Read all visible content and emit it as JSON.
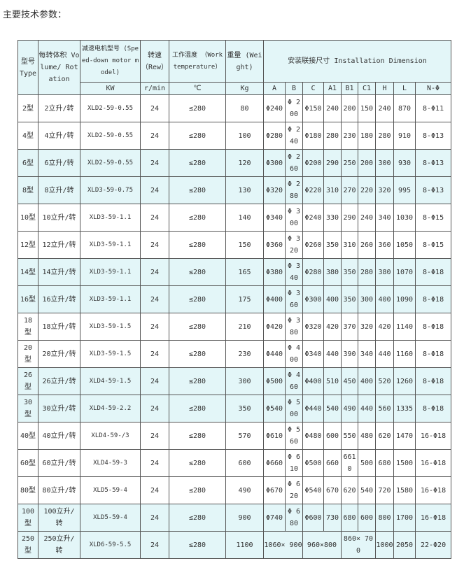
{
  "title": "主要技术参数：",
  "header": {
    "type": "型号 Type",
    "volume": "每转体积 Volume/ Rotation",
    "motor": "减速电机型号 (Speed-down motor model)",
    "speed": "转速 （Rew）",
    "temp": "工作温度 （Work temperature）",
    "weight": "重量 (Weight)",
    "install": "安装联接尺寸 Installation Dimension",
    "units": [
      "KW",
      "r/min",
      "℃",
      "Kg"
    ],
    "dims": [
      "A",
      "B",
      "C",
      "A1",
      "B1",
      "C1",
      "H",
      "L",
      "N-Φ"
    ]
  },
  "rows": [
    [
      "2型",
      "2立升/转",
      "XLD2-59-0.55",
      "24",
      "≤280",
      "80",
      "Φ240",
      "Φ 200",
      "Φ150",
      "240",
      "200",
      "150",
      "240",
      "870",
      "8-Φ11"
    ],
    [
      "4型",
      "4立升/转",
      "XLD2-59-0.55",
      "24",
      "≤280",
      "100",
      "Φ280",
      "Φ 240",
      "Φ180",
      "280",
      "230",
      "180",
      "280",
      "910",
      "8-Φ13"
    ],
    [
      "6型",
      "6立升/转",
      "XLD2-59-0.55",
      "24",
      "≤280",
      "120",
      "Φ300",
      "Φ 260",
      "Φ200",
      "290",
      "250",
      "200",
      "300",
      "930",
      "8-Φ13"
    ],
    [
      "8型",
      "8立升/转",
      "XLD3-59-0.75",
      "24",
      "≤280",
      "130",
      "Φ320",
      "Φ 280",
      "Φ220",
      "310",
      "270",
      "220",
      "320",
      "995",
      "8-Φ13"
    ],
    [
      "10型",
      "10立升/转",
      "XLD3-59-1.1",
      "24",
      "≤280",
      "140",
      "Φ340",
      "Φ 300",
      "Φ240",
      "330",
      "290",
      "240",
      "340",
      "1030",
      "8-Φ15"
    ],
    [
      "12型",
      "12立升/转",
      "XLD3-59-1.1",
      "24",
      "≤280",
      "150",
      "Φ360",
      "Φ 320",
      "Φ260",
      "350",
      "310",
      "260",
      "360",
      "1050",
      "8-Φ15"
    ],
    [
      "14型",
      "14立升/转",
      "XLD3-59-1.1",
      "24",
      "≤280",
      "165",
      "Φ380",
      "Φ 340",
      "Φ280",
      "380",
      "350",
      "280",
      "380",
      "1070",
      "8-Φ18"
    ],
    [
      "16型",
      "16立升/转",
      "XLD3-59-1.1",
      "24",
      "≤280",
      "175",
      "Φ400",
      "Φ 360",
      "Φ300",
      "400",
      "350",
      "300",
      "400",
      "1090",
      "8-Φ18"
    ],
    [
      "18 型",
      "18立升/转",
      "XLD3-59-1.5",
      "24",
      "≤280",
      "210",
      "Φ420",
      "Φ 380",
      "Φ320",
      "420",
      "370",
      "320",
      "420",
      "1140",
      "8-Φ18"
    ],
    [
      "20 型",
      "20立升/转",
      "XLD3-59-1.5",
      "24",
      "≤280",
      "230",
      "Φ440",
      "Φ 400",
      "Φ340",
      "440",
      "390",
      "340",
      "440",
      "1160",
      "8-Φ18"
    ],
    [
      "26 型",
      "26立升/转",
      "XLD4-59-1.5",
      "24",
      "≤280",
      "300",
      "Φ500",
      "Φ 460",
      "Φ400",
      "510",
      "450",
      "400",
      "520",
      "1260",
      "8-Φ18"
    ],
    [
      "30 型",
      "30立升/转",
      "XLD4-59-2.2",
      "24",
      "≤280",
      "350",
      "Φ540",
      "Φ 500",
      "Φ440",
      "540",
      "490",
      "440",
      "560",
      "1335",
      "8-Φ18"
    ],
    [
      "40型",
      "40立升/转",
      "XLD4-59-/3",
      "24",
      "≤280",
      "570",
      "Φ610",
      "Φ 560",
      "Φ480",
      "600",
      "550",
      "480",
      "620",
      "1470",
      "16-Φ18"
    ],
    [
      "60型",
      "60立升/转",
      "XLD4-59-3",
      "24",
      "≤280",
      "600",
      "Φ660",
      "Φ 610",
      "Φ500",
      "660",
      "6610",
      "500",
      "680",
      "1500",
      "16-Φ18"
    ],
    [
      "80型",
      "80立升/转",
      "XLD5-59-4",
      "24",
      "≤280",
      "490",
      "Φ670",
      "Φ 620",
      "Φ540",
      "670",
      "620",
      "540",
      "720",
      "1580",
      "16-Φ18"
    ],
    [
      "100 型",
      "100立升/ 转",
      "XLD5-59-4",
      "24",
      "≤280",
      "900",
      "Φ740",
      "Φ 680",
      "Φ600",
      "730",
      "680",
      "600",
      "800",
      "1700",
      "16-Φ18"
    ]
  ],
  "last_row": [
    "250 型",
    "250立升/ 转",
    "XLD6-59-5.5",
    "24",
    "≤280",
    "1100",
    "1060× 900",
    "960×800",
    "860× 700",
    "1000",
    "2050",
    "22-Φ20"
  ],
  "row_colors": {
    "white": "#ffffff",
    "cyan": "#e3f6f8"
  }
}
